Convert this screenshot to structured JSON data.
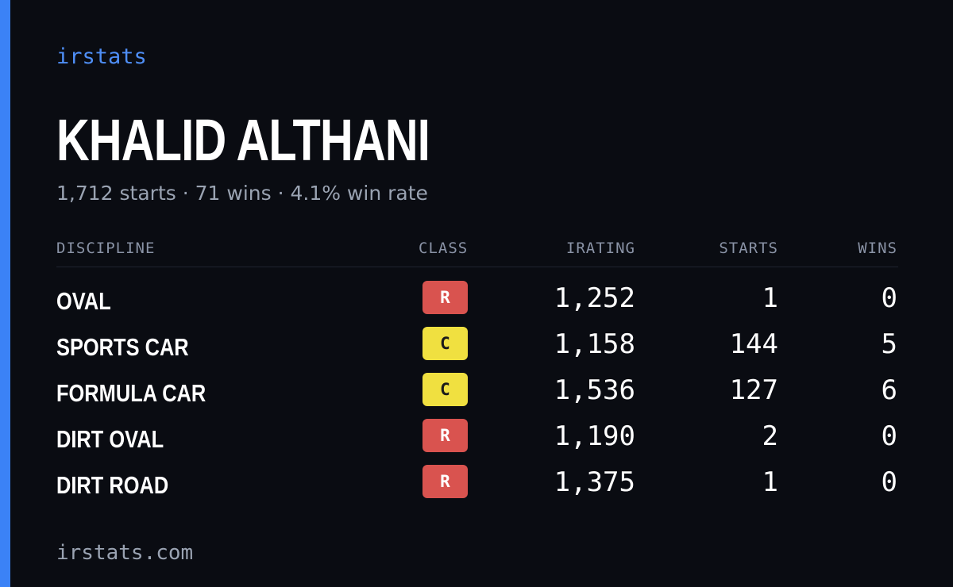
{
  "brand": "irstats",
  "driver": {
    "name": "KHALID ALTHANI",
    "summary": "1,712 starts · 71 wins · 4.1% win rate"
  },
  "table": {
    "headers": {
      "discipline": "DISCIPLINE",
      "class": "CLASS",
      "irating": "IRATING",
      "starts": "STARTS",
      "wins": "WINS"
    },
    "rows": [
      {
        "discipline": "OVAL",
        "class": "R",
        "irating": "1,252",
        "starts": "1",
        "wins": "0"
      },
      {
        "discipline": "SPORTS CAR",
        "class": "C",
        "irating": "1,158",
        "starts": "144",
        "wins": "5"
      },
      {
        "discipline": "FORMULA CAR",
        "class": "C",
        "irating": "1,536",
        "starts": "127",
        "wins": "6"
      },
      {
        "discipline": "DIRT OVAL",
        "class": "R",
        "irating": "1,190",
        "starts": "2",
        "wins": "0"
      },
      {
        "discipline": "DIRT ROAD",
        "class": "R",
        "irating": "1,375",
        "starts": "1",
        "wins": "0"
      }
    ]
  },
  "class_colors": {
    "R": {
      "bg": "#d9534f",
      "fg": "#ffffff"
    },
    "C": {
      "bg": "#f0e040",
      "fg": "#1a1a1a"
    }
  },
  "accent_color": "#3b82f6",
  "footer": "irstats.com"
}
